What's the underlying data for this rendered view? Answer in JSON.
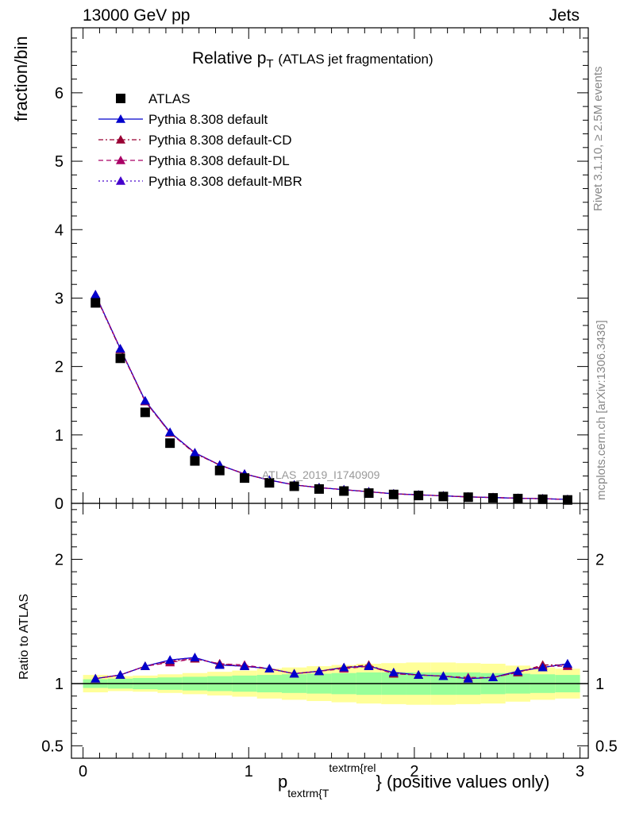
{
  "header": {
    "left": "13000 GeV pp",
    "right": "Jets"
  },
  "side_labels": {
    "rivet": "Rivet 3.1.10, ≥ 2.5M events",
    "mcplots": "mcplots.cern.ch [arXiv:1306.3436]"
  },
  "chart_data": [
    {
      "type": "scatter",
      "panel": "main",
      "title_main": "Relative p",
      "title_sub": "T",
      "title_rest": "(ATLAS jet fragmentation)",
      "ylabel": "fraction/bin",
      "watermark": "ATLAS_2019_I1740909",
      "xlim": [
        -0.07,
        3.05
      ],
      "ylim": [
        0,
        6.95
      ],
      "yticks": [
        0,
        1,
        2,
        3,
        4,
        5,
        6
      ],
      "ytick_labels": [
        "0",
        "1",
        "2",
        "3",
        "4",
        "5",
        "6"
      ],
      "x": [
        0.075,
        0.225,
        0.375,
        0.525,
        0.675,
        0.825,
        0.975,
        1.125,
        1.275,
        1.425,
        1.575,
        1.725,
        1.875,
        2.025,
        2.175,
        2.325,
        2.475,
        2.625,
        2.775,
        2.925
      ],
      "legend_position": "top-left",
      "series": [
        {
          "name": "ATLAS",
          "color": "#000000",
          "marker": "square",
          "line": "none",
          "values": [
            2.93,
            2.12,
            1.33,
            0.88,
            0.62,
            0.48,
            0.37,
            0.3,
            0.25,
            0.21,
            0.18,
            0.15,
            0.13,
            0.115,
            0.1,
            0.09,
            0.08,
            0.07,
            0.06,
            0.05
          ]
        },
        {
          "name": "Pythia 8.308 default",
          "color": "#0000cc",
          "marker": "triangle",
          "line": "solid",
          "values": [
            3.05,
            2.26,
            1.5,
            1.04,
            0.74,
            0.56,
            0.43,
            0.34,
            0.27,
            0.23,
            0.2,
            0.17,
            0.14,
            0.125,
            0.11,
            0.095,
            0.085,
            0.075,
            0.068,
            0.058
          ]
        },
        {
          "name": "Pythia 8.308 default-CD",
          "color": "#990033",
          "marker": "triangle",
          "line": "dashdot",
          "values": [
            3.04,
            2.25,
            1.49,
            1.03,
            0.73,
            0.56,
            0.43,
            0.34,
            0.27,
            0.23,
            0.2,
            0.17,
            0.14,
            0.125,
            0.11,
            0.095,
            0.085,
            0.075,
            0.068,
            0.058
          ]
        },
        {
          "name": "Pythia 8.308 default-DL",
          "color": "#aa0066",
          "marker": "triangle",
          "line": "dashed",
          "values": [
            3.05,
            2.26,
            1.49,
            1.03,
            0.74,
            0.56,
            0.43,
            0.34,
            0.27,
            0.23,
            0.2,
            0.17,
            0.14,
            0.124,
            0.11,
            0.094,
            0.085,
            0.075,
            0.068,
            0.058
          ]
        },
        {
          "name": "Pythia 8.308 default-MBR",
          "color": "#4400cc",
          "marker": "triangle",
          "line": "dotted",
          "values": [
            3.05,
            2.26,
            1.5,
            1.04,
            0.74,
            0.56,
            0.43,
            0.34,
            0.27,
            0.23,
            0.2,
            0.17,
            0.14,
            0.125,
            0.11,
            0.095,
            0.085,
            0.075,
            0.068,
            0.058
          ]
        }
      ]
    },
    {
      "type": "line",
      "panel": "ratio",
      "ylabel": "Ratio to ATLAS",
      "xlabel_main": "p",
      "xlabel_sub": "textrm{T",
      "xlabel_sup": "textrm{rel",
      "xlabel_rest": "} (positive values only)",
      "xlim": [
        -0.07,
        3.05
      ],
      "ylim": [
        0.4,
        2.45
      ],
      "xticks": [
        0,
        1,
        2,
        3
      ],
      "xtick_labels": [
        "0",
        "1",
        "2",
        "3"
      ],
      "yticks": [
        0.5,
        1,
        2
      ],
      "ytick_labels": [
        "0.5",
        "1",
        "2"
      ],
      "reference_line": 1.0,
      "x": [
        0.075,
        0.225,
        0.375,
        0.525,
        0.675,
        0.825,
        0.975,
        1.125,
        1.275,
        1.425,
        1.575,
        1.725,
        1.875,
        2.025,
        2.175,
        2.325,
        2.475,
        2.625,
        2.775,
        2.925
      ],
      "band_inner_hw": [
        0.035,
        0.04,
        0.045,
        0.05,
        0.055,
        0.06,
        0.065,
        0.07,
        0.075,
        0.08,
        0.085,
        0.09,
        0.09,
        0.09,
        0.09,
        0.09,
        0.085,
        0.08,
        0.075,
        0.07
      ],
      "band_outer_hw": [
        0.07,
        0.06,
        0.065,
        0.075,
        0.085,
        0.095,
        0.105,
        0.12,
        0.13,
        0.14,
        0.15,
        0.16,
        0.165,
        0.17,
        0.17,
        0.165,
        0.16,
        0.145,
        0.13,
        0.12
      ],
      "band_colors": {
        "inner": "#99ff99",
        "outer": "#ffff99"
      },
      "series": [
        {
          "name": "Pythia 8.308 default",
          "color": "#0000cc",
          "line": "solid",
          "values": [
            1.04,
            1.07,
            1.14,
            1.19,
            1.21,
            1.15,
            1.14,
            1.12,
            1.08,
            1.1,
            1.13,
            1.14,
            1.09,
            1.07,
            1.06,
            1.04,
            1.05,
            1.1,
            1.13,
            1.16
          ]
        },
        {
          "name": "Pythia 8.308 default-CD",
          "color": "#990033",
          "line": "dashdot",
          "values": [
            1.04,
            1.07,
            1.14,
            1.18,
            1.2,
            1.16,
            1.14,
            1.12,
            1.08,
            1.1,
            1.13,
            1.15,
            1.08,
            1.07,
            1.06,
            1.04,
            1.05,
            1.09,
            1.15,
            1.15
          ]
        },
        {
          "name": "Pythia 8.308 default-DL",
          "color": "#aa0066",
          "line": "dashed",
          "values": [
            1.04,
            1.07,
            1.14,
            1.17,
            1.2,
            1.16,
            1.15,
            1.12,
            1.08,
            1.1,
            1.12,
            1.14,
            1.08,
            1.07,
            1.06,
            1.05,
            1.05,
            1.09,
            1.14,
            1.14
          ]
        },
        {
          "name": "Pythia 8.308 default-MBR",
          "color": "#4400cc",
          "line": "dotted",
          "values": [
            1.04,
            1.07,
            1.14,
            1.19,
            1.21,
            1.15,
            1.14,
            1.12,
            1.08,
            1.1,
            1.13,
            1.14,
            1.09,
            1.07,
            1.06,
            1.04,
            1.05,
            1.1,
            1.13,
            1.16
          ]
        }
      ]
    }
  ]
}
